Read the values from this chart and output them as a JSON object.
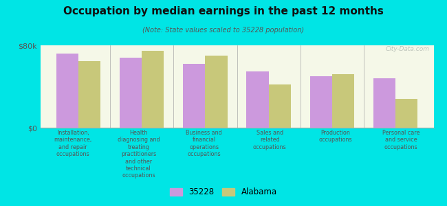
{
  "title": "Occupation by median earnings in the past 12 months",
  "subtitle": "(Note: State values scaled to 35228 population)",
  "background_color": "#00e5e5",
  "plot_bg_color": "#f5f8e8",
  "categories": [
    "Installation,\nmaintenance,\nand repair\noccupations",
    "Health\ndiagnosing and\ntreating\npractitioners\nand other\ntechnical\noccupations",
    "Business and\nfinancial\noperations\noccupations",
    "Sales and\nrelated\noccupations",
    "Production\noccupations",
    "Personal care\nand service\noccupations"
  ],
  "values_35228": [
    72000,
    68000,
    62000,
    55000,
    50000,
    48000
  ],
  "values_alabama": [
    65000,
    75000,
    70000,
    42000,
    52000,
    28000
  ],
  "color_35228": "#cc99dd",
  "color_alabama": "#c8c87a",
  "ylim": [
    0,
    80000
  ],
  "ytick_labels": [
    "$0",
    "$80k"
  ],
  "legend_labels": [
    "35228",
    "Alabama"
  ],
  "watermark": "City-Data.com"
}
